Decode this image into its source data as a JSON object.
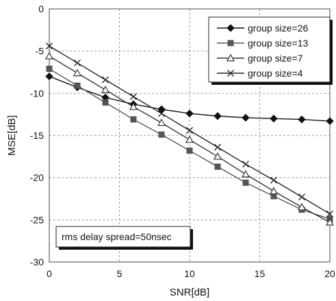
{
  "chart_data": {
    "type": "line",
    "xlabel": "SNR[dB]",
    "ylabel": "MSE[dB]",
    "xlim": [
      0,
      20
    ],
    "ylim": [
      -30,
      0
    ],
    "xticks": [
      "0",
      "5",
      "10",
      "15",
      "20"
    ],
    "yticks": [
      "0",
      "-5",
      "-10",
      "-15",
      "-20",
      "-25",
      "-30"
    ],
    "grid": "dashed",
    "legend_position": "top-right",
    "annotation": "rms delay spread=50nsec",
    "x": [
      0,
      2,
      4,
      6,
      8,
      10,
      12,
      14,
      16,
      18,
      20
    ],
    "series": [
      {
        "name": "group size=26",
        "marker": "diamond",
        "color": "#111111",
        "values": [
          -8.0,
          -9.3,
          -10.5,
          -11.3,
          -11.9,
          -12.4,
          -12.7,
          -12.9,
          -13.0,
          -13.1,
          -13.3
        ]
      },
      {
        "name": "group size=13",
        "marker": "square",
        "color": "#555555",
        "values": [
          -7.1,
          -9.1,
          -11.1,
          -13.1,
          -14.9,
          -16.8,
          -18.7,
          -20.6,
          -22.2,
          -23.8,
          -24.9
        ]
      },
      {
        "name": "group size=7",
        "marker": "triangle",
        "color": "#333333",
        "values": [
          -5.6,
          -7.6,
          -9.6,
          -11.6,
          -13.5,
          -15.5,
          -17.5,
          -19.6,
          -21.6,
          -23.5,
          -25.3
        ]
      },
      {
        "name": "group size=4",
        "marker": "x",
        "color": "#222222",
        "values": [
          -4.4,
          -6.4,
          -8.4,
          -10.4,
          -12.4,
          -14.4,
          -16.4,
          -18.4,
          -20.3,
          -22.3,
          -24.3
        ]
      }
    ]
  }
}
